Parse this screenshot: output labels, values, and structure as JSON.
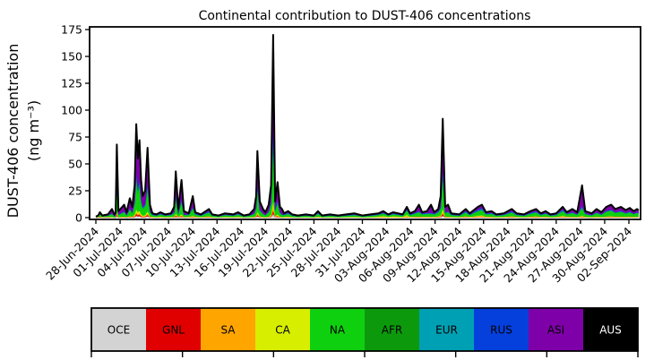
{
  "figure": {
    "background": "#ffffff"
  },
  "chart_data": {
    "type": "area",
    "stacked": true,
    "title": "Continental contribution to DUST-406 concentrations",
    "ylabel_line1": "DUST-406 concentration",
    "ylabel_line2": "(ng m⁻³)",
    "xlabel": "",
    "ylim": [
      0,
      175
    ],
    "yticks": [
      0,
      25,
      50,
      75,
      100,
      125,
      150,
      175
    ],
    "xtick_step_days": 3,
    "xtick_labels": [
      "28-Jun-2024",
      "01-Jul-2024",
      "04-Jul-2024",
      "07-Jul-2024",
      "10-Jul-2024",
      "13-Jul-2024",
      "16-Jul-2024",
      "19-Jul-2024",
      "22-Jul-2024",
      "25-Jul-2024",
      "28-Jul-2024",
      "31-Jul-2024",
      "03-Aug-2024",
      "06-Aug-2024",
      "09-Aug-2024",
      "12-Aug-2024",
      "15-Aug-2024",
      "18-Aug-2024",
      "21-Aug-2024",
      "24-Aug-2024",
      "27-Aug-2024",
      "30-Aug-2024",
      "02-Sep-2024"
    ],
    "regions": [
      {
        "code": "OCE",
        "color": "#d3d3d3",
        "text": "#000000"
      },
      {
        "code": "GNL",
        "color": "#e00000",
        "text": "#000000"
      },
      {
        "code": "SA",
        "color": "#ffa500",
        "text": "#000000"
      },
      {
        "code": "CA",
        "color": "#d8ee00",
        "text": "#000000"
      },
      {
        "code": "NA",
        "color": "#0fd00f",
        "text": "#000000"
      },
      {
        "code": "AFR",
        "color": "#0c9a0c",
        "text": "#000000"
      },
      {
        "code": "EUR",
        "color": "#00a0b4",
        "text": "#000000"
      },
      {
        "code": "RUS",
        "color": "#0540dd",
        "text": "#000000"
      },
      {
        "code": "ASI",
        "color": "#7e00a8",
        "text": "#000000"
      },
      {
        "code": "AUS",
        "color": "#000000",
        "text": "#ffffff"
      }
    ],
    "outline_color": "#000000",
    "x_days": [
      0,
      0.3,
      0.5,
      0.8,
      1.5,
      2,
      2.3,
      2.45,
      2.6,
      2.8,
      3.5,
      3.8,
      4.2,
      4.5,
      4.8,
      5,
      5.2,
      5.4,
      5.6,
      5.8,
      6.1,
      6.4,
      6.7,
      7,
      7.5,
      8,
      8.6,
      9.3,
      9.7,
      9.9,
      10.2,
      10.6,
      10.9,
      11.5,
      12,
      12.3,
      13,
      14,
      14.4,
      15.2,
      16,
      17,
      17.6,
      18.3,
      19,
      19.6,
      19.85,
      20,
      20.3,
      20.7,
      21,
      21.4,
      21.7,
      21.95,
      22.2,
      22.5,
      22.8,
      23.05,
      23.3,
      23.8,
      24.3,
      25,
      26,
      27,
      27.5,
      28,
      29,
      30,
      31,
      32,
      33,
      34,
      35,
      35.6,
      36.2,
      36.8,
      37.4,
      38,
      38.5,
      38.9,
      39.5,
      40,
      40.4,
      41,
      41.5,
      41.9,
      42.4,
      42.7,
      42.95,
      43.25,
      43.6,
      44,
      45,
      45.8,
      46.3,
      47.3,
      47.8,
      48.3,
      49,
      49.6,
      50.5,
      51.5,
      52.1,
      53,
      53.8,
      54.5,
      55.1,
      55.7,
      56.3,
      57,
      57.8,
      58.3,
      59,
      59.6,
      60.2,
      60.6,
      61.4,
      62,
      62.6,
      63.2,
      63.8,
      64.3,
      65,
      65.6,
      66.1,
      66.6,
      67,
      67.2
    ],
    "total": [
      1,
      2,
      5,
      2,
      3,
      8,
      3,
      4,
      68,
      6,
      12,
      5,
      18,
      10,
      30,
      87,
      55,
      72,
      35,
      20,
      25,
      65,
      12,
      4,
      3,
      5,
      3,
      4,
      10,
      43,
      8,
      35,
      6,
      4,
      20,
      5,
      3,
      8,
      3,
      2,
      4,
      3,
      5,
      2,
      3,
      8,
      20,
      62,
      15,
      8,
      5,
      12,
      30,
      170,
      15,
      33,
      10,
      8,
      4,
      6,
      3,
      2,
      3,
      2,
      6,
      2,
      3,
      2,
      3,
      4,
      2,
      3,
      4,
      6,
      3,
      5,
      4,
      3,
      10,
      4,
      6,
      12,
      5,
      6,
      12,
      5,
      8,
      20,
      92,
      10,
      12,
      4,
      3,
      8,
      4,
      10,
      12,
      5,
      6,
      3,
      4,
      8,
      4,
      3,
      6,
      8,
      4,
      6,
      3,
      4,
      10,
      5,
      8,
      5,
      30,
      6,
      4,
      8,
      5,
      10,
      12,
      8,
      10,
      7,
      9,
      6,
      8,
      7
    ],
    "profiles": {
      "P1": {
        "OCE": 0.03,
        "GNL": 0.12,
        "SA": 0.05,
        "CA": 0.05,
        "NA": 0.35,
        "AFR": 0.03,
        "EUR": 0.05,
        "RUS": 0.05,
        "ASI": 0.27,
        "AUS": 0
      },
      "PA": {
        "OCE": 0.02,
        "GNL": 0.02,
        "SA": 0.02,
        "CA": 0.03,
        "NA": 0.32,
        "AFR": 0.02,
        "EUR": 0.03,
        "RUS": 0.04,
        "ASI": 0.5,
        "AUS": 0
      },
      "PQ": {
        "OCE": 0.04,
        "GNL": 0.03,
        "SA": 0.05,
        "CA": 0.06,
        "NA": 0.38,
        "AFR": 0.04,
        "EUR": 0.07,
        "RUS": 0.08,
        "ASI": 0.25,
        "AUS": 0
      },
      "PY": {
        "OCE": 0.03,
        "GNL": 0.02,
        "SA": 0.06,
        "CA": 0.15,
        "NA": 0.35,
        "AFR": 0.04,
        "EUR": 0.06,
        "RUS": 0.06,
        "ASI": 0.23,
        "AUS": 0
      },
      "PS": {
        "OCE": 0.01,
        "GNL": 0.01,
        "SA": 0.02,
        "CA": 0.02,
        "NA": 0.22,
        "AFR": 0.02,
        "EUR": 0.03,
        "RUS": 0.04,
        "ASI": 0.63,
        "AUS": 0
      },
      "PE": {
        "OCE": 0.03,
        "GNL": 0.02,
        "SA": 0.03,
        "CA": 0.04,
        "NA": 0.4,
        "AFR": 0.03,
        "EUR": 0.04,
        "RUS": 0.05,
        "ASI": 0.36,
        "AUS": 0
      }
    },
    "profile_rle": [
      [
        "P1",
        5
      ],
      [
        "PA",
        18
      ],
      [
        "PQ",
        5
      ],
      [
        "PA",
        5
      ],
      [
        "PQ",
        1
      ],
      [
        "PA",
        1
      ],
      [
        "PQ",
        10
      ],
      [
        "PA",
        12
      ],
      [
        "PS",
        1
      ],
      [
        "PQ",
        14
      ],
      [
        "PY",
        7
      ],
      [
        "PQ",
        2
      ],
      [
        "PA",
        1
      ],
      [
        "PQ",
        2
      ],
      [
        "PS",
        1
      ],
      [
        "PQ",
        2
      ],
      [
        "PA",
        4
      ],
      [
        "PQ",
        21
      ],
      [
        "PE",
        2
      ],
      [
        "PS",
        1
      ],
      [
        "PE",
        13
      ]
    ]
  },
  "legend": {
    "tick_count": 7
  }
}
